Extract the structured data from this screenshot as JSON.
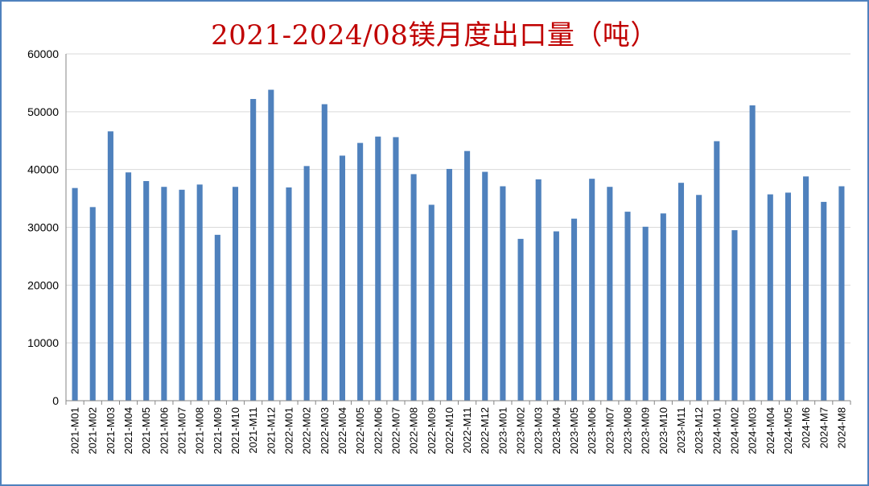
{
  "chart_data": {
    "type": "bar",
    "title": "2021-2024/08镁月度出口量（吨）",
    "xlabel": "",
    "ylabel": "",
    "ylim": [
      0,
      60000
    ],
    "yticks": [
      0,
      10000,
      20000,
      30000,
      40000,
      50000,
      60000
    ],
    "grid": true,
    "legend": "none",
    "bar_color": "#4f81bd",
    "categories": [
      "2021-M01",
      "2021-M02",
      "2021-M03",
      "2021-M04",
      "2021-M05",
      "2021-M06",
      "2021-M07",
      "2021-M08",
      "2021-M09",
      "2021-M10",
      "2021-M11",
      "2021-M12",
      "2022-M01",
      "2022-M02",
      "2022-M03",
      "2022-M04",
      "2022-M05",
      "2022-M06",
      "2022-M07",
      "2022-M08",
      "2022-M09",
      "2022-M10",
      "2022-M11",
      "2022-M12",
      "2023-M01",
      "2023-M02",
      "2023-M03",
      "2023-M04",
      "2023-M05",
      "2023-M06",
      "2023-M07",
      "2023-M08",
      "2023-M09",
      "2023-M10",
      "2023-M11",
      "2023-M12",
      "2024-M01",
      "2024-M02",
      "2024-M03",
      "2024-M04",
      "2024-M05",
      "2024-M6",
      "2024-M7",
      "2024-M8"
    ],
    "values": [
      36800,
      33500,
      46600,
      39500,
      38000,
      37000,
      36500,
      37400,
      28700,
      37000,
      52200,
      53800,
      36900,
      40600,
      51300,
      42400,
      44600,
      45700,
      45600,
      39200,
      33900,
      40100,
      43200,
      39600,
      37100,
      28000,
      38300,
      29300,
      31500,
      38400,
      37000,
      32700,
      30100,
      32400,
      37700,
      35600,
      44900,
      29500,
      51100,
      35700,
      36000,
      38800,
      34400,
      37100
    ]
  }
}
